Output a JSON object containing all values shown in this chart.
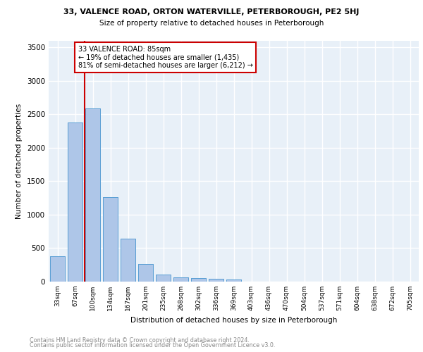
{
  "title_line1": "33, VALENCE ROAD, ORTON WATERVILLE, PETERBOROUGH, PE2 5HJ",
  "title_line2": "Size of property relative to detached houses in Peterborough",
  "xlabel": "Distribution of detached houses by size in Peterborough",
  "ylabel": "Number of detached properties",
  "footer_line1": "Contains HM Land Registry data © Crown copyright and database right 2024.",
  "footer_line2": "Contains public sector information licensed under the Open Government Licence v3.0.",
  "bin_labels": [
    "33sqm",
    "67sqm",
    "100sqm",
    "134sqm",
    "167sqm",
    "201sqm",
    "235sqm",
    "268sqm",
    "302sqm",
    "336sqm",
    "369sqm",
    "403sqm",
    "436sqm",
    "470sqm",
    "504sqm",
    "537sqm",
    "571sqm",
    "604sqm",
    "638sqm",
    "672sqm",
    "705sqm"
  ],
  "bar_values": [
    380,
    2380,
    2590,
    1260,
    640,
    260,
    100,
    65,
    55,
    40,
    30,
    0,
    0,
    0,
    0,
    0,
    0,
    0,
    0,
    0,
    0
  ],
  "bar_color": "#aec6e8",
  "bar_edge_color": "#5a9fd4",
  "background_color": "#e8f0f8",
  "grid_color": "#ffffff",
  "red_line_x": 1.52,
  "annotation_text": "33 VALENCE ROAD: 85sqm\n← 19% of detached houses are smaller (1,435)\n81% of semi-detached houses are larger (6,212) →",
  "annotation_box_color": "#ffffff",
  "annotation_box_edge": "#cc0000",
  "red_line_color": "#cc0000",
  "ylim": [
    0,
    3600
  ],
  "yticks": [
    0,
    500,
    1000,
    1500,
    2000,
    2500,
    3000,
    3500
  ]
}
